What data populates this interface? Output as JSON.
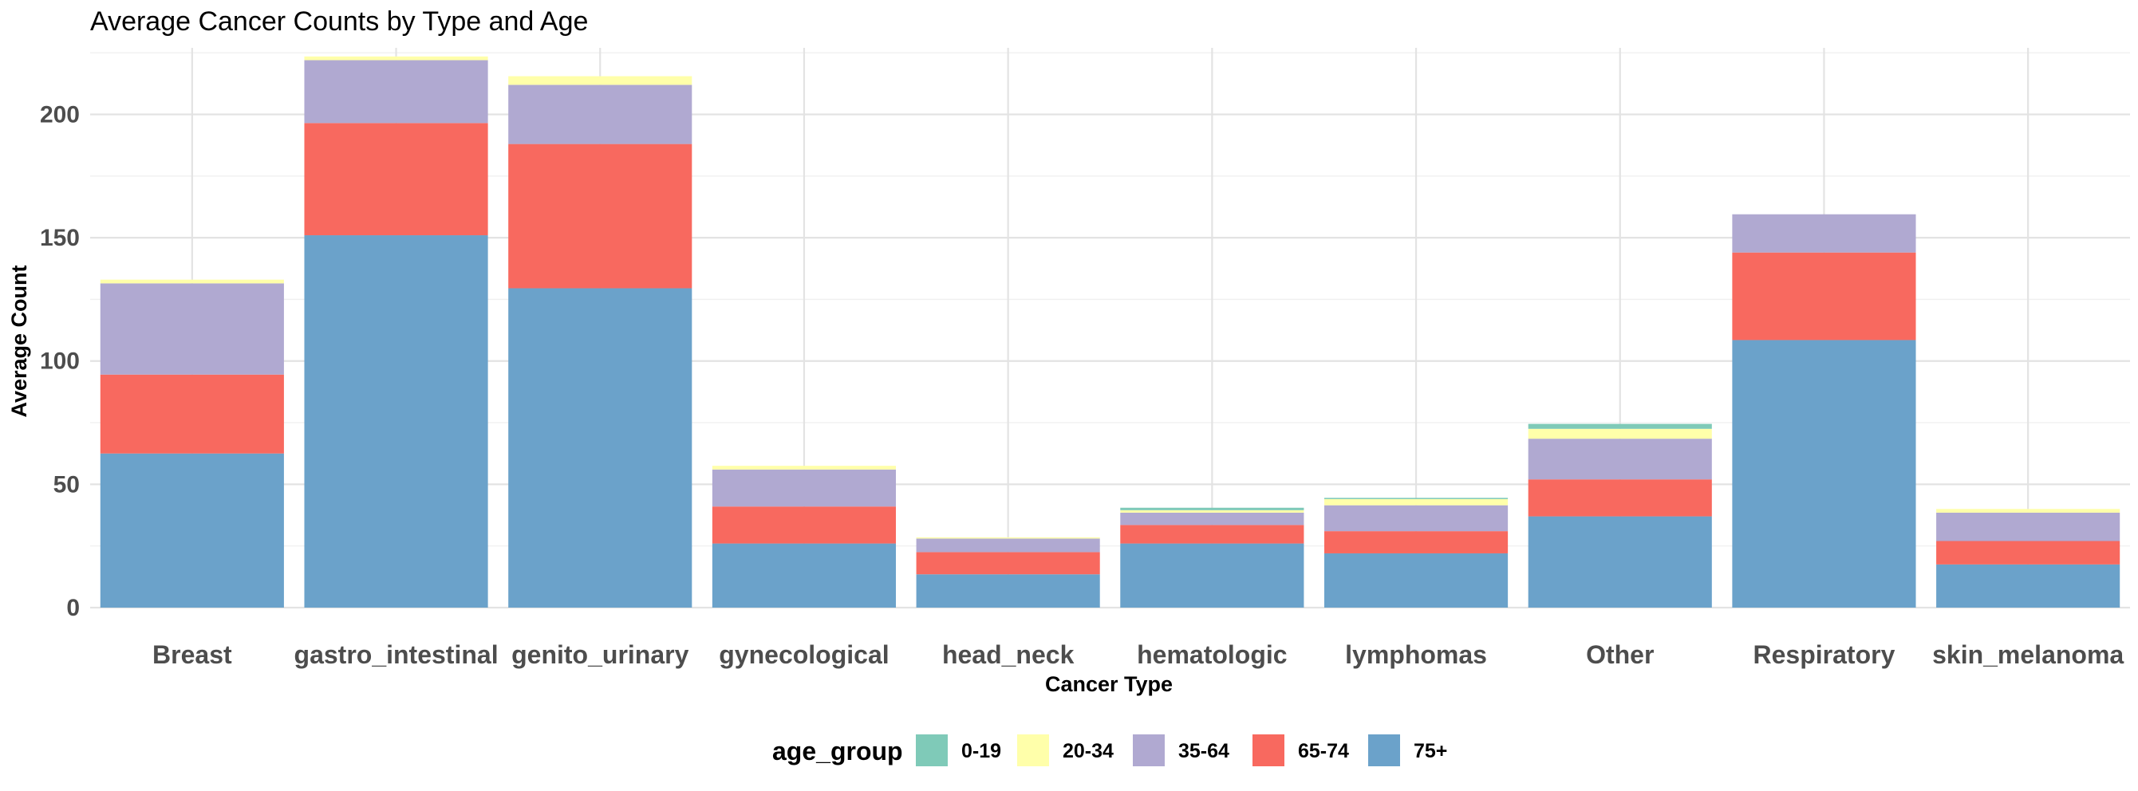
{
  "chart_data": {
    "type": "bar",
    "stacked": true,
    "title": "Average Cancer Counts by Type and Age",
    "xlabel": "Cancer Type",
    "ylabel": "Average Count",
    "ylim": [
      0,
      227
    ],
    "yticks": [
      0,
      50,
      100,
      150,
      200
    ],
    "grid": true,
    "legend_position": "bottom",
    "legend_title": "age_group",
    "categories": [
      "Breast",
      "gastro_intestinal",
      "genito_urinary",
      "gynecological",
      "head_neck",
      "hematologic",
      "lymphomas",
      "Other",
      "Respiratory",
      "skin_melanoma"
    ],
    "series": [
      {
        "name": "75+",
        "color": "#6BA2CA",
        "values": [
          62.5,
          151,
          129.5,
          26,
          13.5,
          26,
          22,
          37,
          108.5,
          17.5
        ]
      },
      {
        "name": "65-74",
        "color": "#F8695F",
        "values": [
          32,
          45.5,
          58.5,
          15,
          9,
          7.5,
          9,
          15,
          35.5,
          9.5
        ]
      },
      {
        "name": "35-64",
        "color": "#B0A9D1",
        "values": [
          37,
          25.5,
          24,
          15,
          5.5,
          5,
          10.5,
          16.5,
          15.5,
          11.5
        ]
      },
      {
        "name": "20-34",
        "color": "#FFFFAA",
        "values": [
          1.5,
          1.5,
          3.5,
          1.5,
          0.5,
          1,
          2.5,
          4,
          0,
          1.5
        ]
      },
      {
        "name": "0-19",
        "color": "#7FCAB8",
        "values": [
          0,
          0,
          0,
          0,
          0,
          1,
          0.5,
          2,
          0,
          0
        ]
      }
    ],
    "legend_order": [
      "0-19",
      "20-34",
      "35-64",
      "65-74",
      "75+"
    ]
  }
}
